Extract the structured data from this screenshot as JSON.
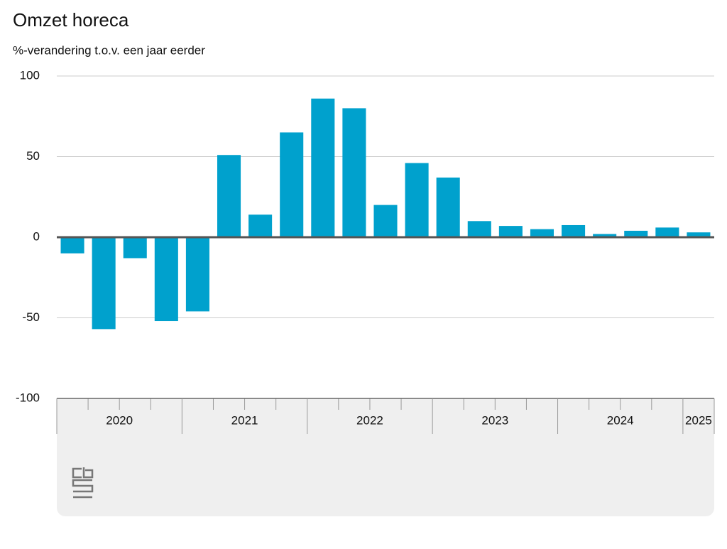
{
  "chart_data": {
    "type": "bar",
    "title": "Omzet horeca",
    "subtitle": "%-verandering t.o.v. een jaar eerder",
    "categories": [
      null,
      null,
      null,
      null,
      null,
      null,
      null,
      null,
      null,
      null,
      null,
      null,
      null,
      null,
      null,
      null,
      null,
      null,
      null,
      null,
      null
    ],
    "values": [
      -10,
      -57,
      -13,
      -52,
      -46,
      51,
      14,
      65,
      86,
      80,
      20,
      46,
      37,
      10,
      7,
      5,
      7.5,
      2,
      4,
      6,
      3
    ],
    "x_groups": [
      "2020",
      "2021",
      "2022",
      "2023",
      "2024",
      "2025"
    ],
    "color": "#00a1cd",
    "ylim": [
      -100,
      100
    ],
    "yticks": [
      -100,
      -50,
      0,
      50,
      100
    ],
    "grid": true
  }
}
